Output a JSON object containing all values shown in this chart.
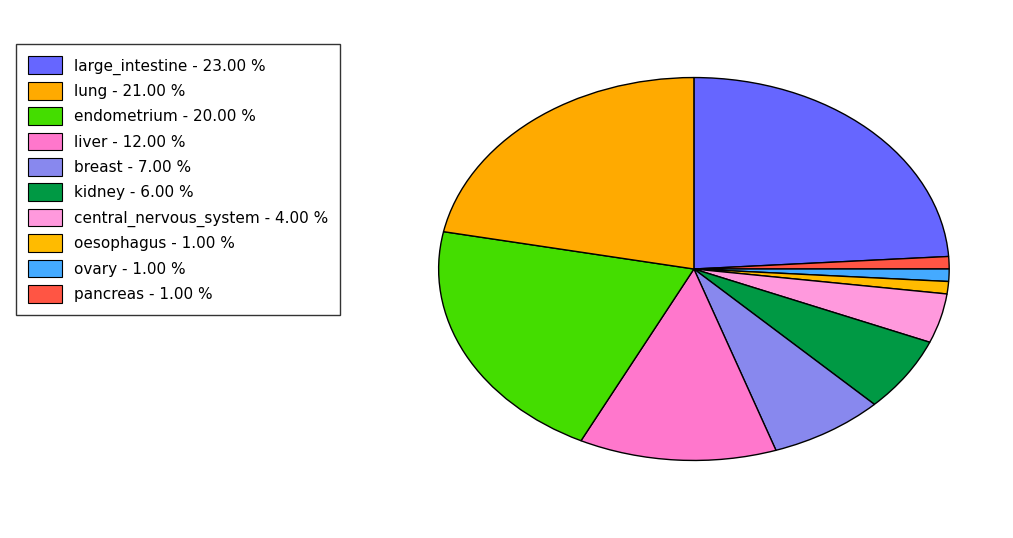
{
  "labels": [
    "large_intestine",
    "pancreas",
    "ovary",
    "oesophagus",
    "central_nervous_system",
    "kidney",
    "breast",
    "liver",
    "endometrium",
    "lung"
  ],
  "values": [
    23,
    1,
    1,
    1,
    4,
    6,
    7,
    12,
    20,
    21
  ],
  "colors": [
    "#6666ff",
    "#ff5544",
    "#44aaff",
    "#ffbb00",
    "#ff99dd",
    "#009944",
    "#8888ee",
    "#ff77cc",
    "#44dd00",
    "#ffaa00"
  ],
  "legend_order": [
    "large_intestine",
    "lung",
    "endometrium",
    "liver",
    "breast",
    "kidney",
    "central_nervous_system",
    "oesophagus",
    "ovary",
    "pancreas"
  ],
  "legend_colors": [
    "#6666ff",
    "#ffaa00",
    "#44dd00",
    "#ff77cc",
    "#8888ee",
    "#009944",
    "#ff99dd",
    "#ffbb00",
    "#44aaff",
    "#ff5544"
  ],
  "legend_labels": [
    "large_intestine - 23.00 %",
    "lung - 21.00 %",
    "endometrium - 20.00 %",
    "liver - 12.00 %",
    "breast - 7.00 %",
    "kidney - 6.00 %",
    "central_nervous_system - 4.00 %",
    "oesophagus - 1.00 %",
    "ovary - 1.00 %",
    "pancreas - 1.00 %"
  ],
  "startangle": 90,
  "figsize": [
    10.13,
    5.38
  ],
  "dpi": 100
}
